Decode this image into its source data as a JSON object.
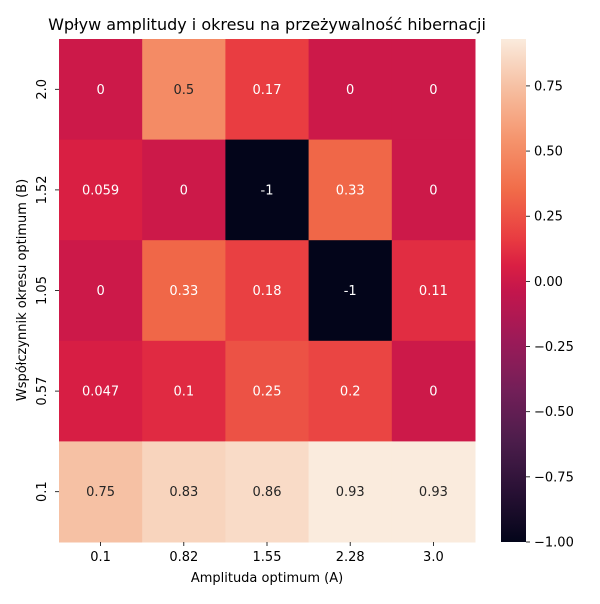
{
  "chart_data": {
    "type": "heatmap",
    "title": "Wpływ amplitudy i okresu na przeżywalność hibernacji",
    "xlabel": "Amplituda optimum (A)",
    "ylabel": "Współczynnik okresu optimum (B)",
    "x_categories": [
      "0.1",
      "0.82",
      "1.55",
      "2.28",
      "3.0"
    ],
    "y_categories": [
      "2.0",
      "1.52",
      "1.05",
      "0.57",
      "0.1"
    ],
    "values": [
      [
        0,
        0.5,
        0.17,
        0,
        0
      ],
      [
        0.059,
        0,
        -1,
        0.33,
        0
      ],
      [
        0,
        0.33,
        0.18,
        -1,
        0.11
      ],
      [
        0.047,
        0.1,
        0.25,
        0.2,
        0
      ],
      [
        0.75,
        0.83,
        0.86,
        0.93,
        0.93
      ]
    ],
    "annotations": [
      [
        "0",
        "0.5",
        "0.17",
        "0",
        "0"
      ],
      [
        "0.059",
        "0",
        "-1",
        "0.33",
        "0"
      ],
      [
        "0",
        "0.33",
        "0.18",
        "-1",
        "0.11"
      ],
      [
        "0.047",
        "0.1",
        "0.25",
        "0.2",
        "0"
      ],
      [
        "0.75",
        "0.83",
        "0.86",
        "0.93",
        "0.93"
      ]
    ],
    "colorbar": {
      "vmin": -1.0,
      "vmax": 0.93,
      "ticks": [
        0.75,
        0.5,
        0.25,
        0.0,
        -0.25,
        -0.5,
        -0.75,
        -1.0
      ],
      "tick_labels": [
        "0.75",
        "0.50",
        "0.25",
        "0.00",
        "−0.25",
        "−0.50",
        "−0.75",
        "−1.00"
      ]
    },
    "colormap": "rocket",
    "grid": false,
    "legend": "colorbar-right"
  }
}
